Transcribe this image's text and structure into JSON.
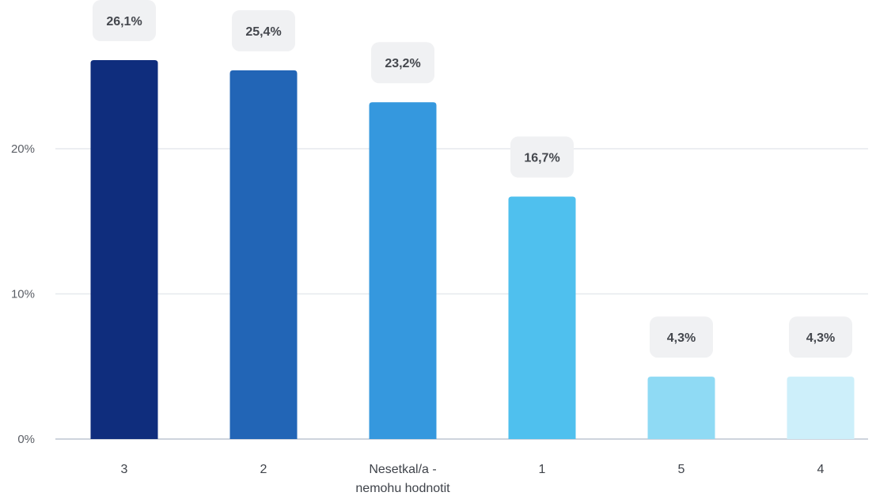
{
  "chart_data": {
    "type": "bar",
    "categories": [
      [
        "3"
      ],
      [
        "2"
      ],
      [
        "Nesetkal/a -",
        "nemohu hodnotit"
      ],
      [
        "1"
      ],
      [
        "5"
      ],
      [
        "4"
      ]
    ],
    "values": [
      26.1,
      25.4,
      23.2,
      16.7,
      4.3,
      4.3
    ],
    "data_labels": [
      "26,1%",
      "25,4%",
      "23,2%",
      "16,7%",
      "4,3%",
      "4,3%"
    ],
    "bar_colors": [
      "#0f2d7d",
      "#2265b6",
      "#3598de",
      "#4fc0ee",
      "#8fdaf4",
      "#cdeffa"
    ],
    "yticks": [
      0,
      10,
      20
    ],
    "ytick_labels": [
      "0%",
      "10%",
      "20%"
    ],
    "ylim": [
      0,
      26.1
    ],
    "grid": true,
    "title": "",
    "xlabel": "",
    "ylabel": ""
  }
}
